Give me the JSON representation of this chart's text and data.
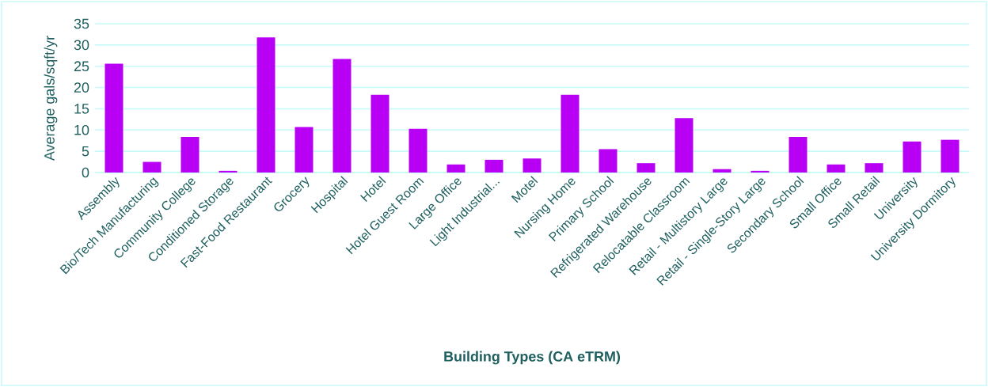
{
  "chart_data": {
    "type": "bar",
    "xlabel": "Building Types (CA eTRM)",
    "ylabel": "Average gals/sqft/yr",
    "categories": [
      "Assembly",
      "Bio/Tech Manufacturing",
      "Community College",
      "Conditioned Storage",
      "Fast-Food Restaurant",
      "Grocery",
      "Hospital",
      "Hotel",
      "Hotel Guest Room",
      "Large Office",
      "Light Industrial...",
      "Motel",
      "Nursing Home",
      "Primary School",
      "Refrigerated Warehouse",
      "Relocatable Classroom",
      "Retail - Multistory Large",
      "Retail - Single-Story Large",
      "Secondary School",
      "Small Office",
      "Small Retail",
      "University",
      "University Dormitory"
    ],
    "values": [
      25.6,
      2.5,
      8.4,
      0.4,
      31.8,
      10.7,
      26.7,
      18.3,
      10.3,
      1.9,
      3.0,
      3.3,
      18.3,
      5.5,
      2.2,
      12.8,
      0.8,
      0.4,
      8.4,
      1.9,
      2.2,
      7.3,
      7.7
    ],
    "color": "#b800f5",
    "ylim": [
      0,
      35
    ],
    "yticks": [
      0,
      5,
      10,
      15,
      20,
      25,
      30,
      35
    ],
    "grid": "y"
  }
}
